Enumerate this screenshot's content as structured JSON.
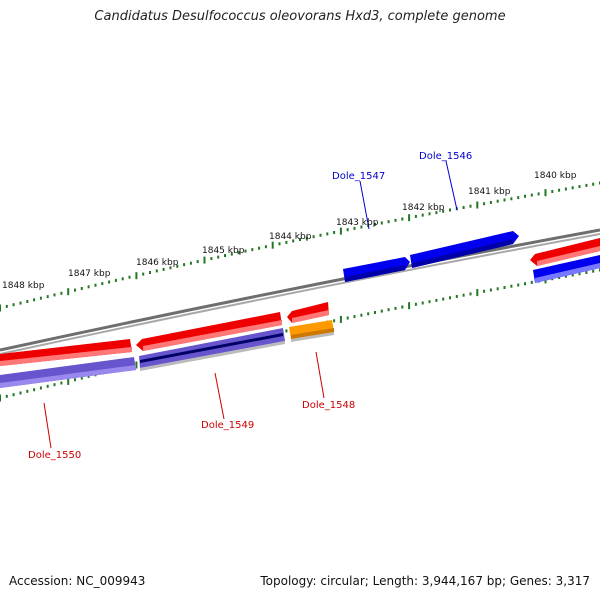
{
  "title": "Candidatus Desulfococcus oleovorans Hxd3, complete genome",
  "footer": {
    "accession": "Accession: NC_009943",
    "summary": "Topology: circular; Length: 3,944,167 bp; Genes: 3,317"
  },
  "scale_labels": [
    "1840 kbp",
    "1841 kbp",
    "1842 kbp",
    "1843 kbp",
    "1844 kbp",
    "1845 kbp",
    "1846 kbp",
    "1847 kbp",
    "1848 kbp"
  ],
  "gene_labels": [
    {
      "text": "Dole_1546",
      "color": "#0000cc"
    },
    {
      "text": "Dole_1547",
      "color": "#0000cc"
    },
    {
      "text": "Dole_1548",
      "color": "#cc0000"
    },
    {
      "text": "Dole_1549",
      "color": "#cc0000"
    },
    {
      "text": "Dole_1550",
      "color": "#cc0000"
    }
  ],
  "colors": {
    "backbone": "#808080",
    "cds_forward": "#0000ee",
    "cds_reverse": "#ee0000",
    "gene_orange": "#ff9900",
    "gene_purple": "#6655cc",
    "ticks": "#227722"
  }
}
